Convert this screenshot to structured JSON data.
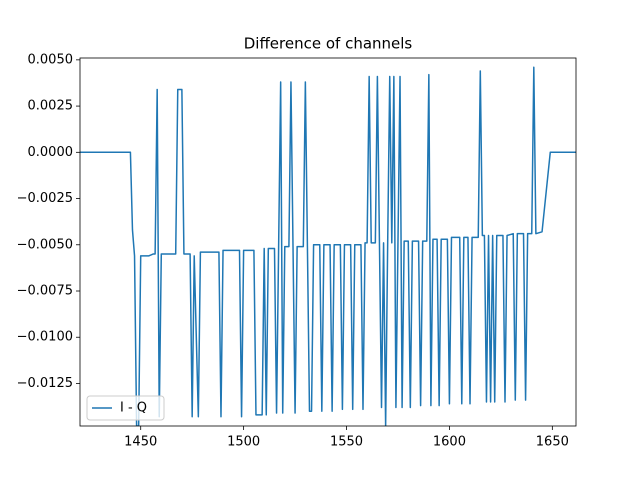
{
  "chart_data": {
    "type": "line",
    "title": "Difference of channels",
    "x": [
      1420,
      1445,
      1446,
      1447,
      1448,
      1449,
      1450,
      1454,
      1456,
      1457,
      1458,
      1459,
      1460,
      1467,
      1468,
      1470,
      1471,
      1474,
      1475,
      1476,
      1478,
      1479,
      1488,
      1489,
      1490,
      1498,
      1499,
      1500,
      1505,
      1506,
      1509,
      1510,
      1511,
      1512,
      1515,
      1516,
      1517,
      1518,
      1519,
      1520,
      1522,
      1523,
      1524,
      1525,
      1526,
      1529,
      1530,
      1531,
      1532,
      1533,
      1534,
      1537,
      1538,
      1539,
      1542,
      1543,
      1544,
      1547,
      1548,
      1549,
      1552,
      1553,
      1554,
      1557,
      1558,
      1559,
      1560,
      1561,
      1562,
      1564,
      1565,
      1566,
      1567,
      1568,
      1569,
      1570,
      1571,
      1572,
      1573,
      1574,
      1575,
      1576,
      1577,
      1578,
      1580,
      1581,
      1582,
      1585,
      1586,
      1587,
      1589,
      1590,
      1591,
      1592,
      1594,
      1595,
      1596,
      1599,
      1600,
      1601,
      1605,
      1606,
      1607,
      1609,
      1610,
      1611,
      1614,
      1615,
      1616,
      1617,
      1618,
      1619,
      1620,
      1621,
      1622,
      1623,
      1626,
      1627,
      1628,
      1631,
      1632,
      1633,
      1636,
      1637,
      1638,
      1640,
      1641,
      1642,
      1645,
      1649,
      1662
    ],
    "series": [
      {
        "name": "I - Q",
        "color": "#1f77b4",
        "values": [
          0,
          0,
          -0.0042,
          -0.0056,
          -0.0148,
          -0.0148,
          -0.0056,
          -0.0056,
          -0.0055,
          -0.0055,
          0.0034,
          -0.0143,
          -0.0055,
          -0.0055,
          0.0034,
          0.0034,
          -0.0055,
          -0.0055,
          -0.0143,
          -0.0056,
          -0.0143,
          -0.0054,
          -0.0054,
          -0.0143,
          -0.0053,
          -0.0053,
          -0.0143,
          -0.0053,
          -0.0053,
          -0.0142,
          -0.0142,
          -0.0052,
          -0.0142,
          -0.0052,
          -0.0052,
          -0.0141,
          -0.0052,
          0.0038,
          -0.0141,
          -0.0051,
          -0.0051,
          0.0038,
          -0.0051,
          -0.0141,
          -0.0051,
          -0.0051,
          0.0038,
          -0.0051,
          -0.014,
          -0.014,
          -0.005,
          -0.005,
          -0.014,
          -0.005,
          -0.005,
          -0.014,
          -0.005,
          -0.005,
          -0.0139,
          -0.005,
          -0.005,
          -0.0139,
          -0.005,
          -0.005,
          -0.0139,
          -0.0049,
          -0.0049,
          0.0041,
          -0.0049,
          -0.0049,
          0.0041,
          -0.0049,
          -0.0138,
          -0.0049,
          -0.0148,
          -0.0049,
          0.0041,
          -0.0049,
          0.0041,
          -0.0138,
          -0.0048,
          0.0041,
          -0.0138,
          -0.0048,
          -0.0048,
          -0.0138,
          -0.0048,
          -0.0048,
          -0.0137,
          -0.0048,
          -0.0048,
          0.0042,
          -0.0137,
          -0.0047,
          -0.0047,
          -0.0137,
          -0.0047,
          -0.0047,
          -0.0136,
          -0.0046,
          -0.0046,
          -0.0136,
          -0.0046,
          -0.0046,
          -0.0136,
          -0.0046,
          -0.0046,
          0.0044,
          -0.0045,
          -0.0045,
          -0.0135,
          -0.0045,
          -0.0135,
          -0.0045,
          -0.0135,
          -0.0045,
          -0.0045,
          -0.0135,
          -0.0045,
          -0.0044,
          -0.0134,
          -0.0044,
          -0.0044,
          -0.0134,
          -0.0044,
          -0.0044,
          0.0046,
          -0.0044,
          -0.0043,
          0,
          0
        ]
      }
    ],
    "xlim": [
      1420.5,
      1661.5
    ],
    "xticks": [
      1450,
      1500,
      1550,
      1600,
      1650
    ],
    "ylim": [
      -0.0148,
      0.0051
    ],
    "yticks": [
      {
        "value": -0.0125,
        "label": "−0.0125"
      },
      {
        "value": -0.01,
        "label": "−0.0100"
      },
      {
        "value": -0.0075,
        "label": "−0.0075"
      },
      {
        "value": -0.005,
        "label": "−0.0050"
      },
      {
        "value": -0.0025,
        "label": "−0.0025"
      },
      {
        "value": 0,
        "label": "0.0000"
      },
      0.0025,
      {
        "value": 0.005,
        "label": "0.0050"
      }
    ],
    "legend": "lower left",
    "grid": false
  }
}
